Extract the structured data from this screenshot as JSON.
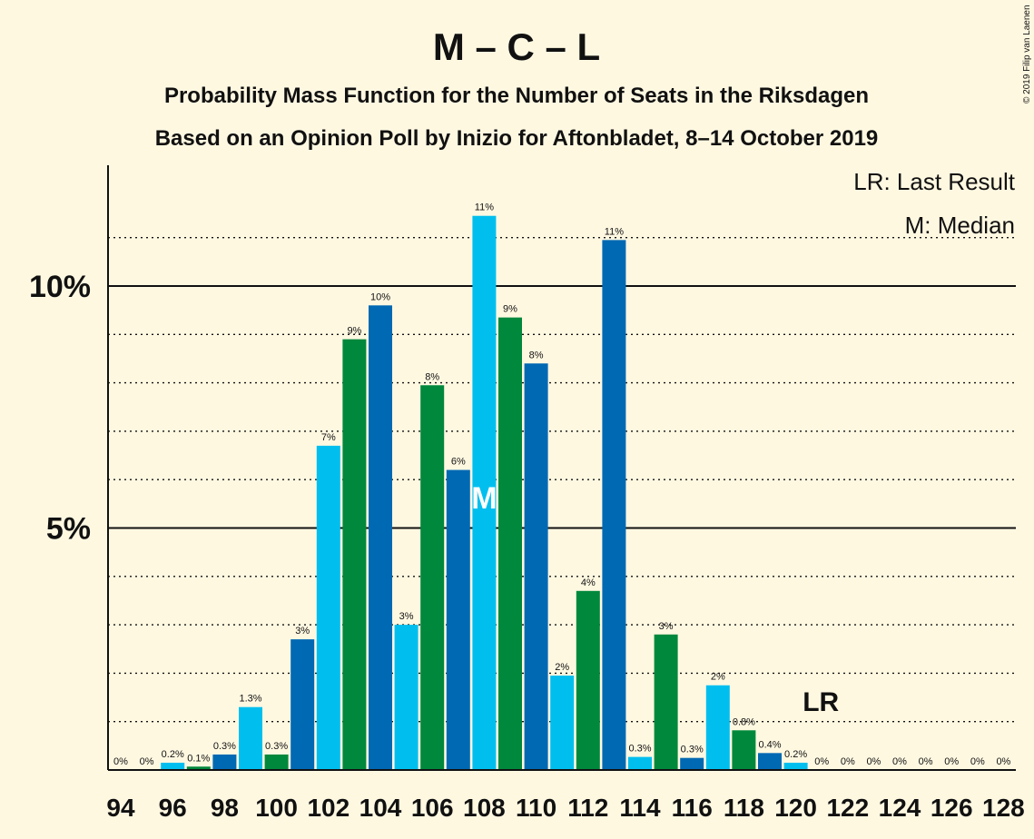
{
  "title": "M – C – L",
  "subtitle1": "Probability Mass Function for the Number of Seats in the Riksdagen",
  "subtitle2": "Based on an Opinion Poll by Inizio for Aftonbladet, 8–14 October 2019",
  "copyright": "© 2019 Filip van Laenen",
  "legend": {
    "lr": "LR: Last Result",
    "m": "M: Median"
  },
  "lr_label": "LR",
  "median_label": "M",
  "colors": {
    "light_blue": "#00bfef",
    "green": "#00883c",
    "dark_blue": "#0069b3",
    "background": "#fff8e1"
  },
  "chart_data": {
    "type": "bar",
    "ylim": [
      0,
      12.5
    ],
    "yticks": [
      {
        "value": 5,
        "label": "5%"
      },
      {
        "value": 10,
        "label": "10%"
      }
    ],
    "xticks": [
      "94",
      "96",
      "98",
      "100",
      "102",
      "104",
      "106",
      "108",
      "110",
      "112",
      "114",
      "116",
      "118",
      "120",
      "122",
      "124",
      "126",
      "128"
    ],
    "median_seat": 108,
    "last_result_seat": 121,
    "bars": [
      {
        "seat": 94,
        "value": 0,
        "label": "0%",
        "color": "light_blue"
      },
      {
        "seat": 95,
        "value": 0,
        "label": "0%",
        "color": "green"
      },
      {
        "seat": 96,
        "value": 0.15,
        "label": "0.2%",
        "color": "light_blue"
      },
      {
        "seat": 97,
        "value": 0.07,
        "label": "0.1%",
        "color": "green"
      },
      {
        "seat": 98,
        "value": 0.32,
        "label": "0.3%",
        "color": "dark_blue"
      },
      {
        "seat": 99,
        "value": 1.3,
        "label": "1.3%",
        "color": "light_blue"
      },
      {
        "seat": 100,
        "value": 0.32,
        "label": "0.3%",
        "color": "green"
      },
      {
        "seat": 101,
        "value": 2.7,
        "label": "3%",
        "color": "dark_blue"
      },
      {
        "seat": 102,
        "value": 6.7,
        "label": "7%",
        "color": "light_blue"
      },
      {
        "seat": 103,
        "value": 8.9,
        "label": "9%",
        "color": "green"
      },
      {
        "seat": 104,
        "value": 9.6,
        "label": "10%",
        "color": "dark_blue"
      },
      {
        "seat": 105,
        "value": 3.0,
        "label": "3%",
        "color": "light_blue"
      },
      {
        "seat": 106,
        "value": 7.95,
        "label": "8%",
        "color": "green"
      },
      {
        "seat": 107,
        "value": 6.2,
        "label": "6%",
        "color": "dark_blue"
      },
      {
        "seat": 108,
        "value": 11.45,
        "label": "11%",
        "color": "light_blue"
      },
      {
        "seat": 109,
        "value": 9.35,
        "label": "9%",
        "color": "green"
      },
      {
        "seat": 110,
        "value": 8.4,
        "label": "8%",
        "color": "dark_blue"
      },
      {
        "seat": 111,
        "value": 1.95,
        "label": "2%",
        "color": "light_blue"
      },
      {
        "seat": 112,
        "value": 3.7,
        "label": "4%",
        "color": "green"
      },
      {
        "seat": 113,
        "value": 10.95,
        "label": "11%",
        "color": "dark_blue"
      },
      {
        "seat": 114,
        "value": 0.27,
        "label": "0.3%",
        "color": "light_blue"
      },
      {
        "seat": 115,
        "value": 2.8,
        "label": "3%",
        "color": "green"
      },
      {
        "seat": 116,
        "value": 0.25,
        "label": "0.3%",
        "color": "dark_blue"
      },
      {
        "seat": 117,
        "value": 1.75,
        "label": "2%",
        "color": "light_blue"
      },
      {
        "seat": 118,
        "value": 0.82,
        "label": "0.8%",
        "color": "green"
      },
      {
        "seat": 119,
        "value": 0.35,
        "label": "0.4%",
        "color": "dark_blue"
      },
      {
        "seat": 120,
        "value": 0.15,
        "label": "0.2%",
        "color": "light_blue"
      },
      {
        "seat": 121,
        "value": 0,
        "label": "0%",
        "color": "green"
      },
      {
        "seat": 122,
        "value": 0,
        "label": "0%",
        "color": "dark_blue"
      },
      {
        "seat": 123,
        "value": 0,
        "label": "0%",
        "color": "light_blue"
      },
      {
        "seat": 124,
        "value": 0,
        "label": "0%",
        "color": "green"
      },
      {
        "seat": 125,
        "value": 0,
        "label": "0%",
        "color": "dark_blue"
      },
      {
        "seat": 126,
        "value": 0,
        "label": "0%",
        "color": "light_blue"
      },
      {
        "seat": 127,
        "value": 0,
        "label": "0%",
        "color": "green"
      },
      {
        "seat": 128,
        "value": 0,
        "label": "0%",
        "color": "dark_blue"
      }
    ]
  }
}
